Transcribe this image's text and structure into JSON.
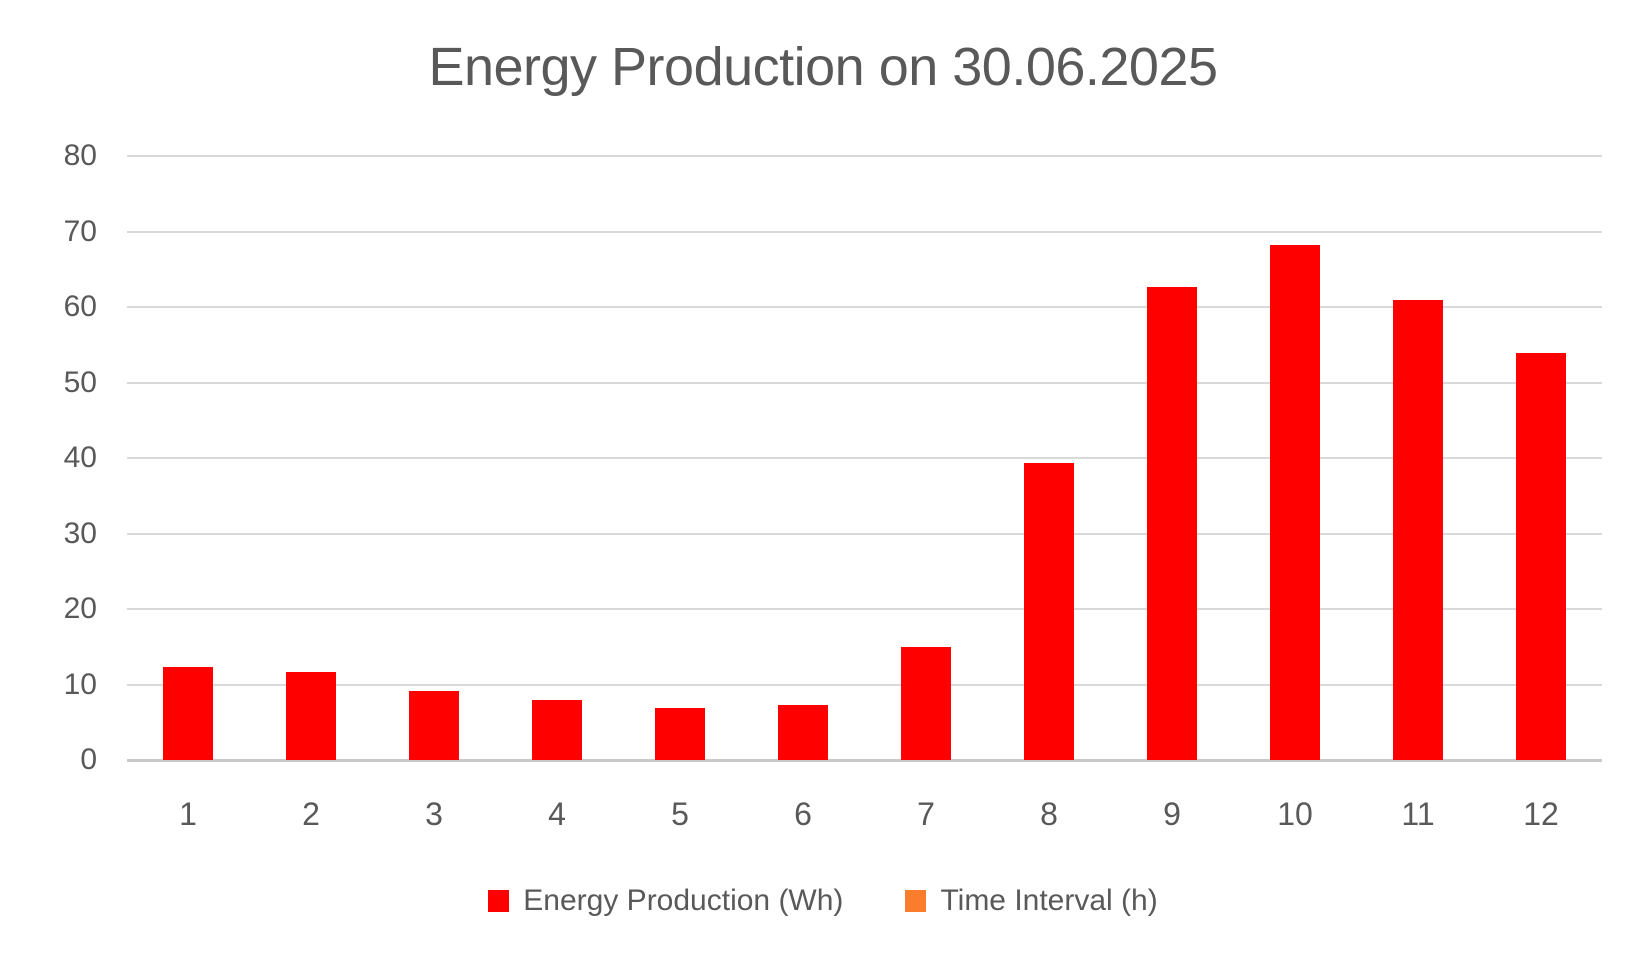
{
  "page": {
    "background_color": "#FFFFFF"
  },
  "chart_data": {
    "type": "bar",
    "title": "Energy Production on 30.06.2025",
    "title_color": "#595959",
    "tick_label_color": "#595959",
    "gridline_color": "#D9D9D9",
    "axis_line_color": "#C9C9C9",
    "grid": true,
    "legend_position": "bottom",
    "categories": [
      "1",
      "2",
      "3",
      "4",
      "5",
      "6",
      "7",
      "8",
      "9",
      "10",
      "11",
      "12"
    ],
    "ylim": [
      0,
      80
    ],
    "yticks": [
      0,
      10,
      20,
      30,
      40,
      50,
      60,
      70,
      80
    ],
    "series": [
      {
        "name": "Energy Production (Wh)",
        "color": "#FE0000",
        "values": [
          12.3,
          11.7,
          9.2,
          8.0,
          6.9,
          7.3,
          15.0,
          39.4,
          62.6,
          68.2,
          60.9,
          53.9
        ]
      },
      {
        "name": "Time Interval (h)",
        "color": "#F97D2C",
        "values": []
      }
    ]
  }
}
